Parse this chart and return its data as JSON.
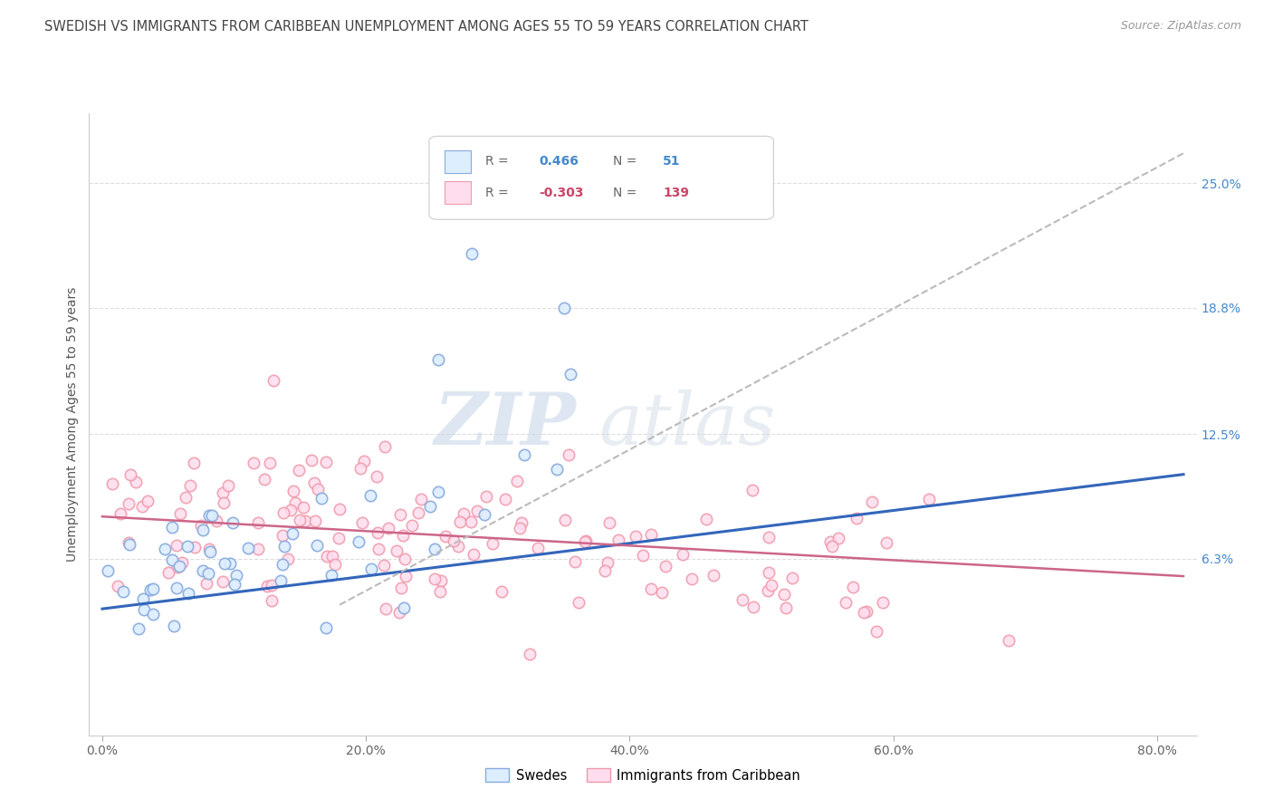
{
  "title": "SWEDISH VS IMMIGRANTS FROM CARIBBEAN UNEMPLOYMENT AMONG AGES 55 TO 59 YEARS CORRELATION CHART",
  "source": "Source: ZipAtlas.com",
  "ylabel": "Unemployment Among Ages 55 to 59 years",
  "xlabel_ticks": [
    "0.0%",
    "20.0%",
    "40.0%",
    "60.0%",
    "80.0%"
  ],
  "xlabel_vals": [
    0.0,
    0.2,
    0.4,
    0.6,
    0.8
  ],
  "ylabel_ticks_right": [
    "25.0%",
    "18.8%",
    "12.5%",
    "6.3%"
  ],
  "ylabel_vals_right": [
    0.25,
    0.188,
    0.125,
    0.063
  ],
  "xlim": [
    -0.01,
    0.83
  ],
  "ylim": [
    -0.025,
    0.285
  ],
  "r_swedish": 0.466,
  "n_swedish": 51,
  "r_caribbean": -0.303,
  "n_caribbean": 139,
  "color_swedish_fill": "#ddeeff",
  "color_swedish_edge": "#88aadd",
  "color_caribbean_fill": "#ffddee",
  "color_caribbean_edge": "#ee99aa",
  "color_swedish_line": "#3366bb",
  "color_caribbean_line": "#cc6688",
  "color_dashed_line": "#bbbbbb",
  "legend_label_swedish": "Swedes",
  "legend_label_caribbean": "Immigrants from Caribbean",
  "watermark_zip": "ZIP",
  "watermark_atlas": "atlas",
  "background_color": "#ffffff",
  "grid_color": "#dddddd",
  "title_color": "#444444",
  "right_axis_color": "#4488cc",
  "legend_r_color": "#888888",
  "legend_val_swedish": "#4488cc",
  "legend_val_caribbean": "#cc4466"
}
